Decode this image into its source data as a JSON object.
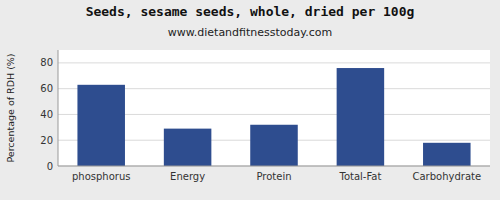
{
  "chart_data": {
    "type": "bar",
    "title": "Seeds, sesame seeds, whole, dried per 100g",
    "subtitle": "www.dietandfitnesstoday.com",
    "categories": [
      "phosphorus",
      "Energy",
      "Protein",
      "Total-Fat",
      "Carbohydrate"
    ],
    "values": [
      63,
      29,
      32,
      76,
      18
    ],
    "color": "#2e4d8f",
    "ylabel": "Percentage of RDH (%)",
    "ylim": [
      0,
      90
    ],
    "yticks": [
      0,
      20,
      40,
      60,
      80
    ],
    "grid": true
  }
}
